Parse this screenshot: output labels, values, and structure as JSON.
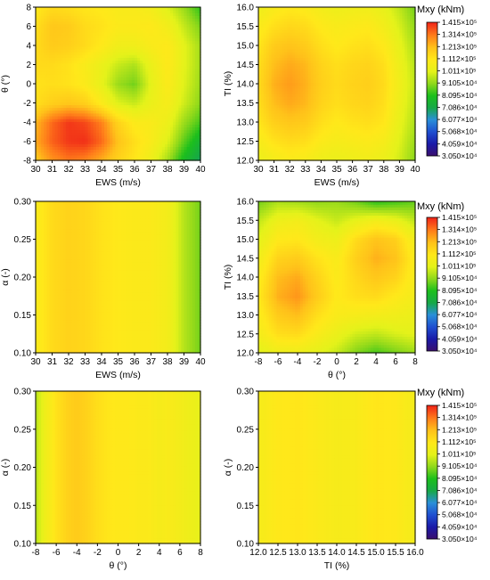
{
  "figure": {
    "colorbar": {
      "title": "Mxy (kNm)",
      "labels": [
        "1.415×10⁵",
        "1.314×10⁵",
        "1.213×10⁵",
        "1.112×10⁵",
        "1.011×10⁵",
        "9.105×10⁴",
        "8.095×10⁴",
        "7.086×10⁴",
        "6.077×10⁴",
        "5.068×10⁴",
        "4.059×10⁴",
        "3.050×10⁴"
      ],
      "min": 30500,
      "max": 141500
    }
  },
  "chart_data": [
    {
      "type": "heatmap",
      "xlabel": "EWS (m/s)",
      "ylabel": "θ (°)",
      "xlim": [
        30,
        40
      ],
      "ylim": [
        -8,
        8
      ],
      "xticks": [
        "30",
        "31",
        "32",
        "33",
        "34",
        "35",
        "36",
        "37",
        "38",
        "39",
        "40"
      ],
      "yticks": [
        "-8",
        "-6",
        "-4",
        "-2",
        "0",
        "2",
        "4",
        "6",
        "8"
      ],
      "x": [
        30,
        31,
        32,
        33,
        34,
        35,
        36,
        37,
        38,
        39,
        40
      ],
      "y": [
        -8,
        -6,
        -4,
        -2,
        0,
        2,
        4,
        6,
        8
      ],
      "z": [
        [
          118000,
          127000,
          131000,
          129000,
          123000,
          116000,
          111000,
          104000,
          93000,
          78000,
          68000
        ],
        [
          124000,
          134000,
          139000,
          140000,
          133000,
          120000,
          113000,
          108000,
          100000,
          86000,
          75000
        ],
        [
          122000,
          133000,
          139000,
          137000,
          130000,
          116000,
          109000,
          108000,
          104000,
          92000,
          84000
        ],
        [
          113000,
          117000,
          119000,
          117000,
          109000,
          100000,
          97000,
          103000,
          107000,
          98000,
          90000
        ],
        [
          112000,
          113000,
          112000,
          109000,
          102000,
          92000,
          88000,
          101000,
          109000,
          100000,
          92000
        ],
        [
          114000,
          114000,
          112000,
          108000,
          103000,
          97000,
          94000,
          103000,
          110000,
          101000,
          93000
        ],
        [
          114000,
          118000,
          117000,
          114000,
          110000,
          105000,
          105000,
          108000,
          110000,
          101000,
          93000
        ],
        [
          113000,
          119000,
          118000,
          114000,
          112000,
          109000,
          109000,
          110000,
          106000,
          97000,
          89000
        ],
        [
          110000,
          114000,
          113000,
          111000,
          110000,
          108000,
          108000,
          106000,
          100000,
          92000,
          82000
        ]
      ],
      "colorbar_title": "Mxy (kNm)",
      "colorbar_labels": [
        "1.415×10⁵",
        "1.314×10⁵",
        "1.213×10⁵",
        "1.112×10⁵",
        "1.011×10⁵",
        "9.105×10⁴",
        "8.095×10⁴",
        "7.086×10⁴",
        "6.077×10⁴",
        "5.068×10⁴",
        "4.059×10⁴",
        "3.050×10⁴"
      ]
    },
    {
      "type": "heatmap",
      "xlabel": "EWS (m/s)",
      "ylabel": "TI (%)",
      "xlim": [
        30,
        40
      ],
      "ylim": [
        12,
        16
      ],
      "xticks": [
        "30",
        "31",
        "32",
        "33",
        "34",
        "35",
        "36",
        "37",
        "38",
        "39",
        "40"
      ],
      "yticks": [
        "12.0",
        "12.5",
        "13.0",
        "13.5",
        "14.0",
        "14.5",
        "15.0",
        "15.5",
        "16.0"
      ],
      "x": [
        30,
        31,
        32,
        33,
        34,
        35,
        36,
        37,
        38,
        39,
        40
      ],
      "y": [
        12,
        12.5,
        13,
        13.5,
        14,
        14.5,
        15,
        15.5,
        16
      ],
      "z": [
        [
          103000,
          106000,
          108000,
          107000,
          104000,
          103000,
          104000,
          105000,
          103000,
          98000,
          90000
        ],
        [
          107000,
          112000,
          114000,
          113000,
          109000,
          107000,
          108000,
          109000,
          107000,
          100000,
          92000
        ],
        [
          111000,
          117000,
          119000,
          118000,
          113000,
          110000,
          112000,
          113000,
          111000,
          102000,
          94000
        ],
        [
          113000,
          121000,
          124000,
          122000,
          116000,
          113000,
          115000,
          116000,
          113000,
          104000,
          95000
        ],
        [
          114000,
          123000,
          126000,
          123000,
          117000,
          114000,
          116000,
          117000,
          114000,
          105000,
          96000
        ],
        [
          113000,
          121000,
          124000,
          122000,
          116000,
          113000,
          115000,
          116000,
          113000,
          104000,
          95000
        ],
        [
          111000,
          118000,
          120000,
          118000,
          113000,
          110000,
          112000,
          113000,
          110000,
          102000,
          93000
        ],
        [
          108000,
          113000,
          115000,
          114000,
          110000,
          108000,
          109000,
          110000,
          106000,
          99000,
          91000
        ],
        [
          104000,
          108000,
          110000,
          109000,
          106000,
          104000,
          105000,
          105000,
          102000,
          96000,
          88000
        ]
      ],
      "colorbar_title": "Mxy (kNm)",
      "colorbar_labels": [
        "1.415×10⁵",
        "1.314×10⁵",
        "1.213×10⁵",
        "1.112×10⁵",
        "1.011×10⁵",
        "9.105×10⁴",
        "8.095×10⁴",
        "7.086×10⁴",
        "6.077×10⁴",
        "5.068×10⁴",
        "4.059×10⁴",
        "3.050×10⁴"
      ]
    },
    {
      "type": "heatmap",
      "xlabel": "EWS (m/s)",
      "ylabel": "α (-)",
      "xlim": [
        30,
        40
      ],
      "ylim": [
        0.1,
        0.3
      ],
      "xticks": [
        "30",
        "31",
        "32",
        "33",
        "34",
        "35",
        "36",
        "37",
        "38",
        "39",
        "40"
      ],
      "yticks": [
        "0.10",
        "0.15",
        "0.20",
        "0.25",
        "0.30"
      ],
      "x": [
        30,
        31,
        32,
        33,
        34,
        35,
        36,
        37,
        38,
        39,
        40
      ],
      "y": [
        0.1,
        0.15,
        0.2,
        0.25,
        0.3
      ],
      "z": [
        [
          108000,
          114000,
          116000,
          115000,
          112000,
          110000,
          109000,
          109000,
          106000,
          95000,
          88000
        ],
        [
          108000,
          114000,
          116000,
          115000,
          112000,
          110000,
          109000,
          109000,
          106000,
          95000,
          88000
        ],
        [
          108000,
          114000,
          116000,
          115000,
          112000,
          110000,
          109000,
          109000,
          106000,
          95000,
          88000
        ],
        [
          108000,
          114000,
          116000,
          115000,
          112000,
          110000,
          109000,
          109000,
          106000,
          95000,
          88000
        ],
        [
          108000,
          114000,
          116000,
          115000,
          112000,
          110000,
          109000,
          109000,
          106000,
          95000,
          88000
        ]
      ],
      "colorbar_title": "",
      "colorbar_labels": []
    },
    {
      "type": "heatmap",
      "xlabel": "θ (°)",
      "ylabel": "TI (%)",
      "xlim": [
        -8,
        8
      ],
      "ylim": [
        12,
        16
      ],
      "xticks": [
        "-8",
        "-6",
        "-4",
        "-2",
        "0",
        "2",
        "4",
        "6",
        "8"
      ],
      "yticks": [
        "12.0",
        "12.5",
        "13.0",
        "13.5",
        "14.0",
        "14.5",
        "15.0",
        "15.5",
        "16.0"
      ],
      "x": [
        -8,
        -6,
        -4,
        -2,
        0,
        2,
        4,
        6,
        8
      ],
      "y": [
        12,
        12.5,
        13,
        13.5,
        14,
        14.5,
        15,
        15.5,
        16
      ],
      "z": [
        [
          100000,
          104000,
          104000,
          101000,
          97000,
          89000,
          84000,
          88000,
          92000
        ],
        [
          106000,
          113000,
          114000,
          108000,
          103000,
          98000,
          96000,
          99000,
          101000
        ],
        [
          108000,
          118000,
          121000,
          113000,
          108000,
          107000,
          106000,
          105000,
          103000
        ],
        [
          110000,
          123000,
          127000,
          118000,
          110000,
          113000,
          114000,
          110000,
          106000
        ],
        [
          108000,
          121000,
          124000,
          116000,
          109000,
          115000,
          119000,
          116000,
          107000
        ],
        [
          105000,
          116000,
          118000,
          112000,
          108000,
          117000,
          123000,
          120000,
          108000
        ],
        [
          101000,
          110000,
          111000,
          106000,
          104000,
          114000,
          120000,
          117000,
          105000
        ],
        [
          96000,
          104000,
          106000,
          101000,
          97000,
          102000,
          106000,
          103000,
          96000
        ],
        [
          88000,
          94000,
          93000,
          91000,
          92000,
          88000,
          82000,
          84000,
          87000
        ]
      ],
      "colorbar_title": "Mxy (kNm)",
      "colorbar_labels": [
        "1.415×10⁵",
        "1.314×10⁵",
        "1.213×10⁵",
        "1.112×10⁵",
        "1.011×10⁵",
        "9.105×10⁴",
        "8.095×10⁴",
        "7.086×10⁴",
        "6.077×10⁴",
        "5.068×10⁴",
        "4.059×10⁴",
        "3.050×10⁴"
      ]
    },
    {
      "type": "heatmap",
      "xlabel": "θ (°)",
      "ylabel": "α (-)",
      "xlim": [
        -8,
        8
      ],
      "ylim": [
        0.1,
        0.3
      ],
      "xticks": [
        "-8",
        "-6",
        "-4",
        "-2",
        "0",
        "2",
        "4",
        "6",
        "8"
      ],
      "yticks": [
        "0.10",
        "0.15",
        "0.20",
        "0.25",
        "0.30"
      ],
      "x": [
        -8,
        -7,
        -6,
        -5,
        -4,
        -3,
        -2,
        -1,
        0,
        1,
        2,
        3,
        4,
        5,
        6,
        7,
        8
      ],
      "y": [
        0.1,
        0.15,
        0.2,
        0.25,
        0.3
      ],
      "z": [
        [
          95000,
          105000,
          112000,
          116000,
          118000,
          116000,
          113000,
          111000,
          110000,
          110000,
          109000,
          109000,
          107000,
          108000,
          106000,
          104000,
          102000
        ],
        [
          95000,
          105000,
          112000,
          116000,
          118000,
          116000,
          113000,
          111000,
          110000,
          110000,
          109000,
          109000,
          107000,
          108000,
          106000,
          104000,
          102000
        ],
        [
          95000,
          105000,
          112000,
          116000,
          118000,
          116000,
          113000,
          111000,
          110000,
          110000,
          109000,
          109000,
          107000,
          108000,
          106000,
          104000,
          102000
        ],
        [
          95000,
          105000,
          112000,
          116000,
          118000,
          116000,
          113000,
          111000,
          110000,
          110000,
          109000,
          109000,
          107000,
          108000,
          106000,
          104000,
          102000
        ],
        [
          95000,
          105000,
          112000,
          116000,
          118000,
          116000,
          113000,
          111000,
          110000,
          110000,
          109000,
          109000,
          107000,
          108000,
          106000,
          104000,
          102000
        ]
      ],
      "colorbar_title": "",
      "colorbar_labels": []
    },
    {
      "type": "heatmap",
      "xlabel": "TI (%)",
      "ylabel": "α (-)",
      "xlim": [
        12,
        16
      ],
      "ylim": [
        0.1,
        0.3
      ],
      "xticks": [
        "12.0",
        "12.5",
        "13.0",
        "13.5",
        "14.0",
        "14.5",
        "15.0",
        "15.5",
        "16.0"
      ],
      "yticks": [
        "0.10",
        "0.15",
        "0.20",
        "0.25",
        "0.30"
      ],
      "x": [
        12,
        12.5,
        13,
        13.5,
        14,
        14.5,
        15,
        15.5,
        16
      ],
      "y": [
        0.1,
        0.15,
        0.2,
        0.25,
        0.3
      ],
      "z": [
        [
          107000,
          110000,
          111000,
          109000,
          107000,
          108000,
          111000,
          110000,
          106000
        ],
        [
          107000,
          110000,
          111000,
          109000,
          107000,
          108000,
          111000,
          110000,
          106000
        ],
        [
          107000,
          110000,
          111000,
          109000,
          107000,
          108000,
          111000,
          110000,
          106000
        ],
        [
          107000,
          110000,
          111000,
          109000,
          107000,
          108000,
          111000,
          110000,
          106000
        ],
        [
          107000,
          110000,
          111000,
          109000,
          107000,
          108000,
          111000,
          110000,
          106000
        ]
      ],
      "colorbar_title": "Mxy (kNm)",
      "colorbar_labels": [
        "1.415×10⁵",
        "1.314×10⁵",
        "1.213×10⁵",
        "1.112×10⁵",
        "1.011×10⁵",
        "9.105×10⁴",
        "8.095×10⁴",
        "7.086×10⁴",
        "6.077×10⁴",
        "5.068×10⁴",
        "4.059×10⁴",
        "3.050×10⁴"
      ]
    }
  ]
}
